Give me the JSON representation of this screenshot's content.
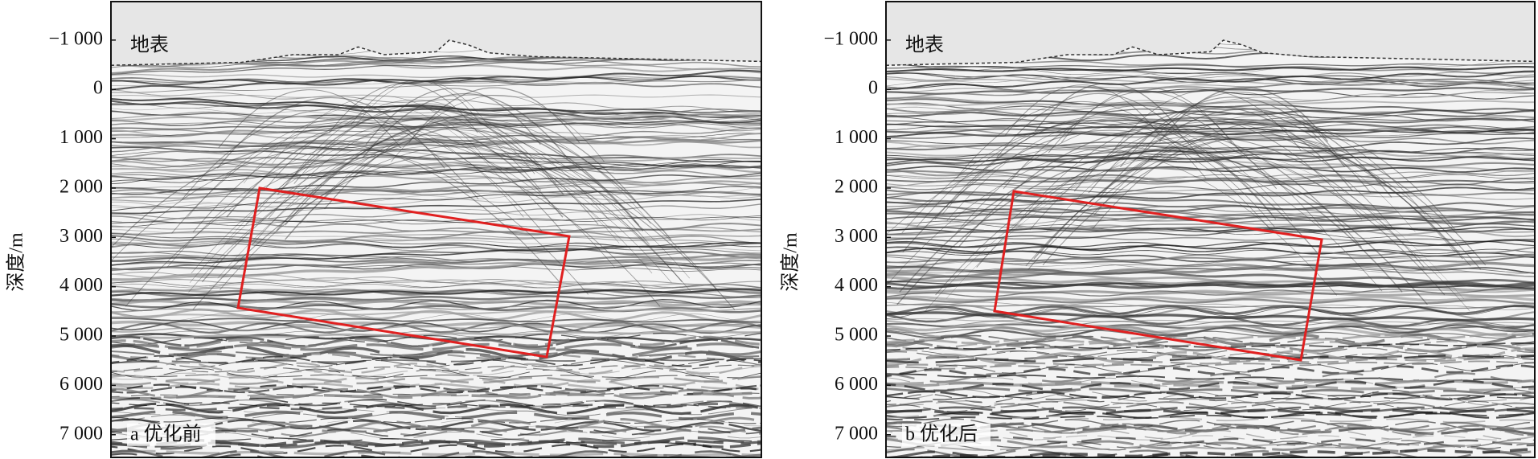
{
  "panels": [
    {
      "ylabel": "深度/m",
      "surface_label": "地表",
      "caption": "a 优化前",
      "ylim": [
        -1780,
        7460
      ],
      "yticks": [
        {
          "value": -1000,
          "label": "−1 000"
        },
        0,
        {
          "value": 1000,
          "label": "1 000"
        },
        {
          "value": 2000,
          "label": "2 000"
        },
        {
          "value": 3000,
          "label": "3 000"
        },
        {
          "value": 4000,
          "label": "4 000"
        },
        {
          "value": 5000,
          "label": "5 000"
        },
        {
          "value": 6000,
          "label": "6 000"
        },
        {
          "value": 7000,
          "label": "7 000"
        }
      ]
    },
    {
      "ylabel": "深度/m",
      "surface_label": "地表",
      "caption": "b 优化后",
      "ylim": [
        -1780,
        7460
      ],
      "yticks": [
        {
          "value": -1000,
          "label": "−1 000"
        },
        0,
        {
          "value": 1000,
          "label": "1 000"
        },
        {
          "value": 2000,
          "label": "2 000"
        },
        {
          "value": 3000,
          "label": "3 000"
        },
        {
          "value": 4000,
          "label": "4 000"
        },
        {
          "value": 5000,
          "label": "5 000"
        },
        {
          "value": 6000,
          "label": "6 000"
        },
        {
          "value": 7000,
          "label": "7 000"
        }
      ]
    }
  ]
}
